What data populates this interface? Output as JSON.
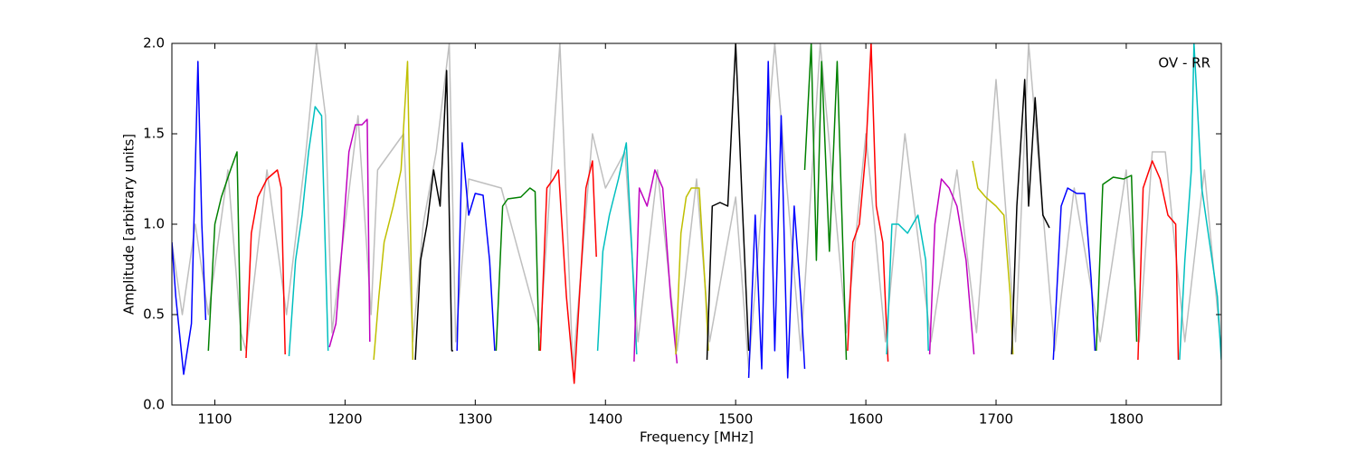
{
  "chart_data": {
    "type": "line",
    "annotation": "OV - RR",
    "xlabel": "Frequency [MHz]",
    "ylabel": "Amplitude [arbitrary units]",
    "xlim": [
      1067,
      1873
    ],
    "ylim": [
      0,
      2
    ],
    "xticks": [
      1100,
      1200,
      1300,
      1400,
      1500,
      1600,
      1700,
      1800
    ],
    "yticks": [
      {
        "value": 0,
        "label": "0.0"
      },
      0.5,
      {
        "value": 1,
        "label": "1.0"
      },
      1.5,
      {
        "value": 2,
        "label": "2.0"
      }
    ],
    "grid": false,
    "series": [
      {
        "color": "#bfbfbf",
        "x": [
          1067,
          1075,
          1085,
          1095,
          1110,
          1120,
          1124,
          1140,
          1155,
          1170,
          1178,
          1185,
          1190,
          1210,
          1220,
          1225,
          1245,
          1252,
          1260,
          1270,
          1280,
          1285,
          1295,
          1320,
          1350,
          1365,
          1375,
          1390,
          1400,
          1415,
          1425,
          1440,
          1455,
          1470,
          1480,
          1500,
          1510,
          1530,
          1550,
          1565,
          1585,
          1600,
          1615,
          1630,
          1650,
          1670,
          1685,
          1700,
          1715,
          1725,
          1745,
          1760,
          1780,
          1800,
          1810,
          1820,
          1830,
          1845,
          1860,
          1873
        ],
        "values": [
          0.9,
          0.5,
          1.0,
          0.5,
          1.3,
          0.4,
          0.3,
          1.3,
          0.5,
          1.4,
          2.0,
          1.6,
          0.4,
          1.6,
          0.5,
          1.3,
          1.5,
          0.35,
          1.0,
          1.4,
          2.0,
          0.35,
          1.25,
          1.2,
          0.4,
          2.0,
          0.2,
          1.5,
          1.2,
          1.4,
          0.35,
          1.3,
          0.3,
          1.25,
          0.35,
          1.15,
          0.2,
          2.0,
          0.3,
          2.0,
          0.4,
          1.5,
          0.35,
          1.5,
          0.35,
          1.3,
          0.4,
          1.8,
          0.35,
          2.0,
          0.3,
          1.2,
          0.35,
          1.3,
          0.35,
          1.4,
          1.4,
          0.35,
          1.3,
          0.3
        ]
      },
      {
        "color": "#0000ff",
        "x": [
          1067,
          1070,
          1076,
          1082,
          1087,
          1090,
          1093,
          null,
          1286,
          1290,
          1295,
          1300,
          1306,
          1311,
          1315,
          null,
          1510,
          1515,
          1520,
          1525,
          1530,
          1535,
          1540,
          1545,
          1550,
          1553,
          null,
          1744,
          1750,
          1755,
          1762,
          1768,
          1773,
          1776
        ],
        "values": [
          0.9,
          0.6,
          0.17,
          0.45,
          1.9,
          1.0,
          0.47,
          null,
          0.3,
          1.45,
          1.05,
          1.17,
          1.16,
          0.8,
          0.3,
          null,
          0.15,
          1.05,
          0.2,
          1.9,
          0.3,
          1.6,
          0.15,
          1.1,
          0.6,
          0.2,
          null,
          0.25,
          1.1,
          1.2,
          1.17,
          1.17,
          0.7,
          0.3
        ]
      },
      {
        "color": "#008000",
        "x": [
          1095,
          1100,
          1105,
          1112,
          1117,
          1120,
          null,
          1316,
          1321,
          1325,
          1335,
          1342,
          1346,
          1349,
          null,
          1553,
          1558,
          1562,
          1566,
          1572,
          1578,
          1585,
          null,
          1777,
          1782,
          1790,
          1798,
          1804,
          1808
        ],
        "values": [
          0.3,
          1.0,
          1.15,
          1.3,
          1.4,
          0.3,
          null,
          0.3,
          1.1,
          1.14,
          1.15,
          1.2,
          1.18,
          0.3,
          null,
          1.3,
          2.0,
          0.8,
          1.9,
          0.85,
          1.9,
          0.25,
          null,
          0.3,
          1.22,
          1.26,
          1.25,
          1.27,
          0.35
        ]
      },
      {
        "color": "#ff0000",
        "x": [
          1124,
          1128,
          1133,
          1140,
          1148,
          1151,
          1154,
          null,
          1350,
          1355,
          1360,
          1364,
          1370,
          1376,
          1380,
          1385,
          1390,
          1393,
          null,
          1586,
          1590,
          1595,
          1600,
          1604,
          1608,
          1613,
          1617,
          null,
          1809,
          1813,
          1820,
          1826,
          1832,
          1838,
          1840
        ],
        "values": [
          0.26,
          0.95,
          1.15,
          1.25,
          1.3,
          1.2,
          0.28,
          null,
          0.3,
          1.2,
          1.25,
          1.3,
          0.6,
          0.12,
          0.6,
          1.2,
          1.35,
          0.82,
          null,
          0.3,
          0.9,
          1.0,
          1.4,
          2.0,
          1.1,
          0.9,
          0.24,
          null,
          0.25,
          1.2,
          1.35,
          1.25,
          1.05,
          1.0,
          0.25
        ]
      },
      {
        "color": "#00bfbf",
        "x": [
          1157,
          1162,
          1167,
          1172,
          1177,
          1182,
          1187,
          null,
          1394,
          1398,
          1403,
          1410,
          1416,
          1420,
          1424,
          null,
          1616,
          1620,
          1625,
          1632,
          1640,
          1646,
          1648,
          null,
          1841,
          1845,
          1850,
          1852,
          1858,
          1864,
          1870,
          1873
        ],
        "values": [
          0.27,
          0.8,
          1.05,
          1.4,
          1.65,
          1.6,
          0.3,
          null,
          0.3,
          0.85,
          1.05,
          1.25,
          1.45,
          0.9,
          0.28,
          null,
          0.28,
          1.0,
          1.0,
          0.95,
          1.05,
          0.8,
          0.3,
          null,
          0.25,
          0.8,
          1.3,
          2.0,
          1.2,
          0.9,
          0.6,
          0.25
        ]
      },
      {
        "color": "#bf00bf",
        "x": [
          1188,
          1193,
          1198,
          1203,
          1208,
          1213,
          1217,
          1219,
          null,
          1422,
          1426,
          1432,
          1438,
          1444,
          1450,
          1455,
          null,
          1649,
          1653,
          1658,
          1664,
          1670,
          1677,
          1683
        ],
        "values": [
          0.32,
          0.45,
          0.9,
          1.4,
          1.55,
          1.55,
          1.58,
          0.35,
          null,
          0.24,
          1.2,
          1.1,
          1.3,
          1.2,
          0.6,
          0.23,
          null,
          0.28,
          1.0,
          1.25,
          1.2,
          1.1,
          0.8,
          0.28
        ]
      },
      {
        "color": "#bfbf00",
        "x": [
          1222,
          1226,
          1230,
          1237,
          1243,
          1248,
          1252,
          null,
          1454,
          1458,
          1462,
          1466,
          1472,
          1477,
          1479,
          null,
          1682,
          1686,
          1692,
          1700,
          1706,
          1711,
          1713
        ],
        "values": [
          0.25,
          0.6,
          0.9,
          1.1,
          1.3,
          1.9,
          0.25,
          null,
          0.28,
          0.95,
          1.15,
          1.2,
          1.2,
          0.6,
          0.3,
          null,
          1.35,
          1.2,
          1.15,
          1.1,
          1.05,
          0.6,
          0.28
        ]
      },
      {
        "color": "#000000",
        "x": [
          1254,
          1258,
          1263,
          1268,
          1273,
          1278,
          1282,
          1283,
          null,
          1478,
          1482,
          1488,
          1494,
          1500,
          1505,
          1510,
          null,
          1712,
          1716,
          1722,
          1725,
          1730,
          1736,
          1741
        ],
        "values": [
          0.25,
          0.8,
          1.0,
          1.3,
          1.1,
          1.85,
          0.3,
          0.3,
          null,
          0.25,
          1.1,
          1.12,
          1.1,
          2.0,
          1.12,
          0.3,
          null,
          0.28,
          1.1,
          1.8,
          1.1,
          1.7,
          1.05,
          0.98
        ]
      }
    ]
  }
}
